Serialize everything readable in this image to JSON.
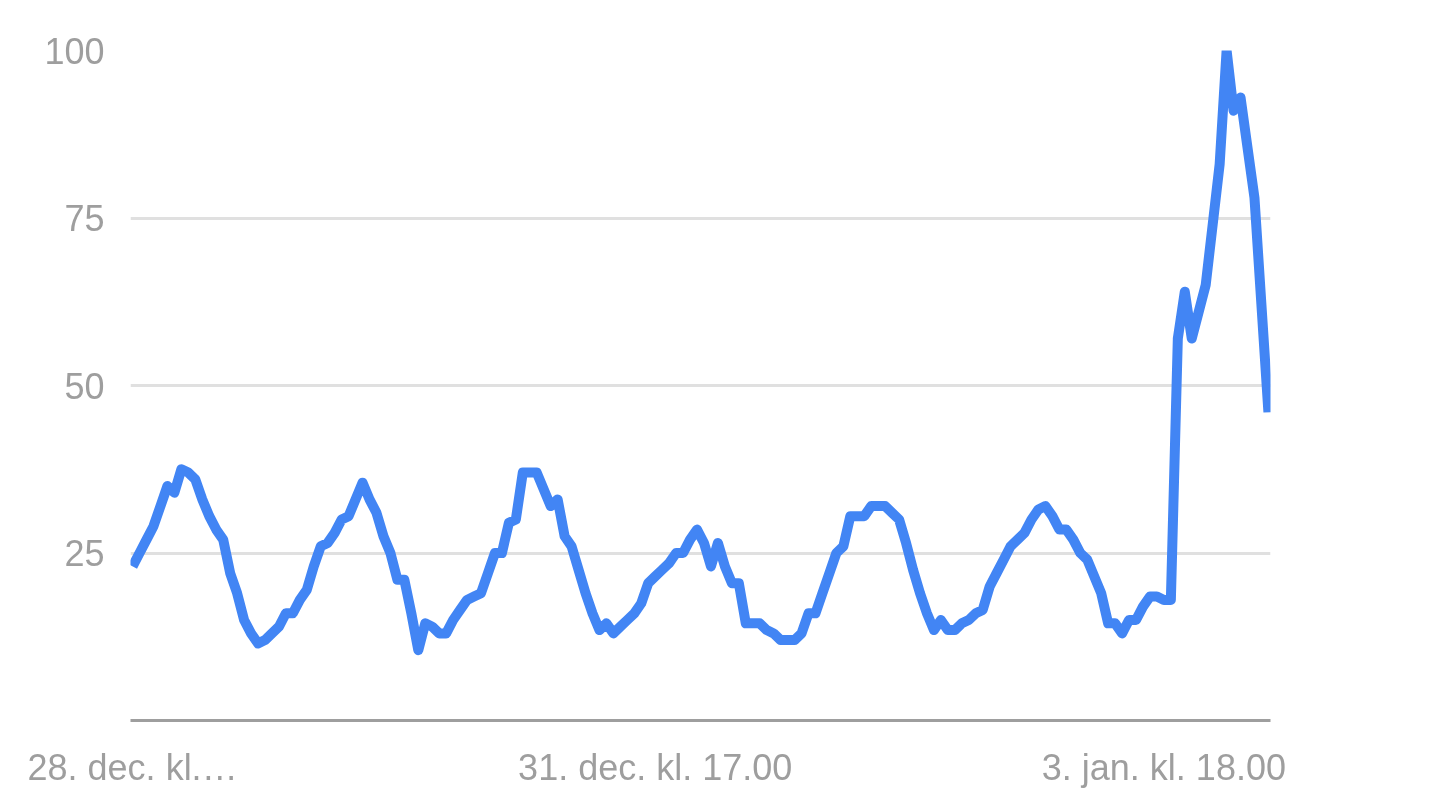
{
  "chart_data": {
    "type": "line",
    "categories": [
      "28. dec. kl.…",
      null,
      null,
      null,
      null,
      null,
      null,
      null,
      null,
      null,
      null,
      null,
      null,
      null,
      null,
      null,
      null,
      null,
      null,
      null,
      null,
      null,
      null,
      null,
      null,
      null,
      null,
      null,
      null,
      null,
      null,
      null,
      null,
      null,
      null,
      null,
      null,
      null,
      null,
      null,
      null,
      null,
      null,
      null,
      null,
      null,
      null,
      null,
      null,
      null,
      null,
      null,
      null,
      null,
      null,
      null,
      null,
      null,
      null,
      null,
      null,
      null,
      null,
      null,
      null,
      null,
      null,
      null,
      null,
      null,
      null,
      null,
      null,
      null,
      null,
      "31. dec. kl. 17.00",
      null,
      null,
      null,
      null,
      null,
      null,
      null,
      null,
      null,
      null,
      null,
      null,
      null,
      null,
      null,
      null,
      null,
      null,
      null,
      null,
      null,
      null,
      null,
      null,
      null,
      null,
      null,
      null,
      null,
      null,
      null,
      null,
      null,
      null,
      null,
      null,
      null,
      null,
      null,
      null,
      null,
      null,
      null,
      null,
      null,
      null,
      null,
      null,
      null,
      null,
      null,
      null,
      null,
      null,
      null,
      null,
      null,
      null,
      null,
      null,
      null,
      null,
      null,
      null,
      null,
      null,
      null,
      null,
      null,
      null,
      null,
      null,
      "3. jan. kl. 18.00",
      null,
      null,
      null,
      null,
      null,
      null,
      null,
      null,
      null,
      null,
      null,
      null,
      null,
      null,
      null
    ],
    "series": [
      {
        "color": "#4285f4",
        "values": [
          23,
          25,
          27,
          29,
          32,
          35,
          34,
          37.5,
          37,
          36,
          33,
          30.5,
          28.5,
          27,
          22,
          19,
          15,
          13,
          11.5,
          12,
          13,
          14,
          16,
          16,
          18,
          19.5,
          23,
          26,
          26.5,
          28,
          30,
          30.5,
          33,
          35.5,
          33,
          31,
          27.5,
          25,
          21,
          21,
          16,
          10.5,
          14.5,
          14,
          13,
          13,
          15,
          16.5,
          18,
          18.5,
          19,
          22,
          25,
          25,
          29.5,
          30,
          37,
          37,
          37,
          34.5,
          32,
          33,
          27.5,
          26,
          22.5,
          19,
          16,
          13.5,
          14.5,
          13,
          14,
          15,
          16,
          17.5,
          20.5,
          21.5,
          22.5,
          23.5,
          25,
          25,
          27,
          28.5,
          26.5,
          23,
          26.5,
          23,
          20.5,
          20.5,
          14.5,
          14.5,
          14.5,
          13.5,
          13,
          12,
          12,
          12,
          13,
          16,
          16,
          19,
          22,
          25,
          26,
          30.5,
          30.5,
          30.5,
          32,
          32,
          32,
          31,
          30,
          26.5,
          22.5,
          19,
          16,
          13.5,
          15,
          13.5,
          13.5,
          14.5,
          15,
          16,
          16.5,
          20,
          22,
          24,
          26,
          27,
          28,
          30,
          31.5,
          32,
          30.5,
          28.5,
          28.5,
          27,
          25,
          24,
          21.5,
          19,
          14.5,
          14.5,
          13,
          15,
          15,
          17,
          18.5,
          18.5,
          18,
          18,
          57,
          64,
          57,
          61,
          65,
          74,
          83,
          100,
          91,
          93,
          85.5,
          78,
          62,
          46
        ]
      }
    ],
    "ylim": [
      0,
      100
    ],
    "yticks": [
      25,
      50,
      75,
      100
    ],
    "grid": "y",
    "line_style": "solid"
  }
}
